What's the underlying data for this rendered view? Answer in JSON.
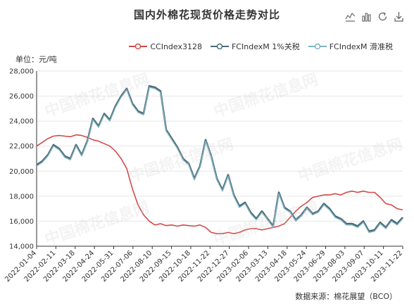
{
  "title": "国内外棉花现货价格走势对比",
  "unit_label": "单位：元/吨",
  "source": "数据来源：棉花展望（BCO）",
  "watermark": "中国棉花信息网",
  "toolbox": [
    {
      "name": "line-chart-icon"
    },
    {
      "name": "bar-chart-icon"
    },
    {
      "name": "refresh-icon"
    },
    {
      "name": "download-icon"
    }
  ],
  "colors": {
    "cc": "#d14a48",
    "fc1": "#4d6a78",
    "fc2": "#7fb4c1",
    "fc2_edge": "#5f8f9b",
    "grid": "#e6e6e6",
    "axis": "#333333"
  },
  "chart_data": {
    "type": "line",
    "title": "国内外棉花现货价格走势对比",
    "ylabel": "单位：元/吨",
    "ylim": [
      14000,
      28000
    ],
    "yticks": [
      14000,
      16000,
      18000,
      20000,
      22000,
      24000,
      26000,
      28000
    ],
    "ytick_labels": [
      "14,000",
      "16,000",
      "18,000",
      "20,000",
      "22,000",
      "24,000",
      "26,000",
      "28,000"
    ],
    "x_tick_labels": [
      "2022-01-04",
      "2022-02-11",
      "2022-03-18",
      "2022-04-24",
      "2022-05-31",
      "2022-07-06",
      "2022-08-10",
      "2022-09-15",
      "2022-10-18",
      "2022-11-22",
      "2022-12-27",
      "2023-02-06",
      "2023-03-13",
      "2023-04-18",
      "2023-05-24",
      "2023-06-29",
      "2023-08-03",
      "2023-09-07",
      "2023-10-11",
      "2023-11-22"
    ],
    "grid": true,
    "legend_position": "top-right",
    "series": [
      {
        "name": "CCIndex3128",
        "values": [
          22000,
          22300,
          22600,
          22800,
          22850,
          22800,
          22750,
          22900,
          22850,
          22700,
          22500,
          22400,
          22200,
          22000,
          21600,
          21000,
          20200,
          18600,
          17300,
          16500,
          16000,
          15700,
          15800,
          15650,
          15700,
          15600,
          15700,
          15650,
          15600,
          15700,
          15500,
          15100,
          15000,
          15000,
          15100,
          15000,
          15100,
          15300,
          15400,
          15400,
          15300,
          15400,
          15500,
          15600,
          15800,
          16300,
          16800,
          17200,
          17500,
          17900,
          18000,
          18100,
          18100,
          18200,
          18100,
          18300,
          18400,
          18300,
          18400,
          18300,
          18300,
          17900,
          17400,
          17300,
          17000,
          16900
        ]
      },
      {
        "name": "FCIndexM 1%关税",
        "values": [
          20500,
          20800,
          21300,
          22100,
          21800,
          21200,
          21000,
          22100,
          21300,
          22400,
          24200,
          23600,
          24600,
          24100,
          25200,
          26000,
          26600,
          25400,
          24800,
          24600,
          26800,
          26700,
          26400,
          23300,
          22600,
          21900,
          21000,
          20600,
          19400,
          20400,
          22500,
          21200,
          19400,
          18500,
          19700,
          18100,
          17200,
          17500,
          16700,
          16200,
          16800,
          16200,
          15600,
          18300,
          17100,
          16800,
          16100,
          16500,
          17100,
          16600,
          16800,
          17400,
          17000,
          16400,
          16200,
          15800,
          15800,
          15600,
          16000,
          15200,
          15300,
          15900,
          15500,
          16100,
          15800,
          16300
        ]
      },
      {
        "name": "FCIndexM 滑准税",
        "values": [
          20400,
          20700,
          21200,
          22000,
          21700,
          21100,
          20900,
          22000,
          21200,
          22300,
          24100,
          23500,
          24500,
          24000,
          25100,
          25900,
          26500,
          25300,
          24700,
          24500,
          26700,
          26600,
          26300,
          23200,
          22500,
          21800,
          20900,
          20500,
          19300,
          20300,
          22400,
          21100,
          19300,
          18400,
          19600,
          18000,
          17100,
          17400,
          16600,
          16100,
          16700,
          16100,
          15500,
          18200,
          17000,
          16700,
          16000,
          16400,
          17000,
          16500,
          16700,
          17300,
          16900,
          16300,
          16100,
          15700,
          15700,
          15500,
          15900,
          15100,
          15200,
          15800,
          15400,
          16000,
          15700,
          16200
        ]
      }
    ]
  }
}
